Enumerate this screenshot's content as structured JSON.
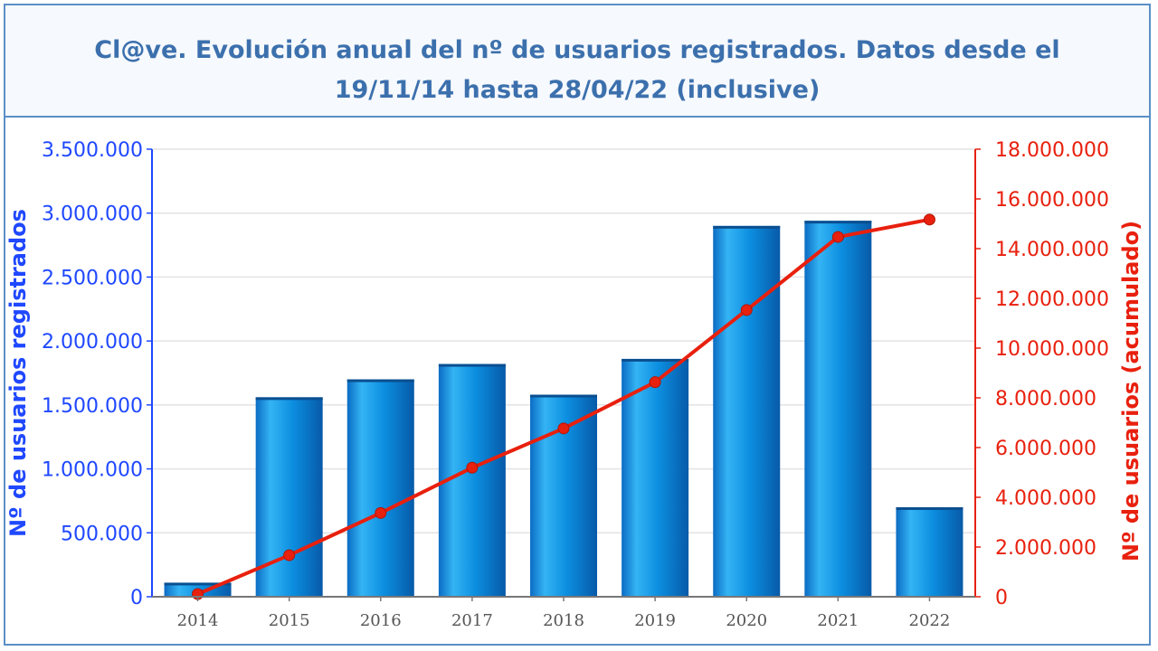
{
  "chart_data": {
    "type": "bar",
    "title": "Cl@ve. Evolución anual del nº de usuarios registrados. Datos desde el  19/11/14 hasta 28/04/22 (inclusive)",
    "categories": [
      "2014",
      "2015",
      "2016",
      "2017",
      "2018",
      "2019",
      "2020",
      "2021",
      "2022"
    ],
    "series": [
      {
        "name": "Nº de usuarios registrados",
        "type": "bar",
        "axis": "left",
        "color": "#0a86d8",
        "values": [
          110000,
          1560000,
          1700000,
          1820000,
          1580000,
          1860000,
          2900000,
          2940000,
          700000
        ]
      },
      {
        "name": "Nº de usuarios (acumulado)",
        "type": "line",
        "axis": "right",
        "color": "#e8200e",
        "values": [
          110000,
          1670000,
          3370000,
          5190000,
          6770000,
          8630000,
          11530000,
          14470000,
          15170000
        ]
      }
    ],
    "ylabel": "Nº de usuarios registrados",
    "ylabel_right": "Nº de usuarios (acumulado)",
    "ylim": [
      0,
      3500000
    ],
    "ylim_right": [
      0,
      18000000
    ],
    "yticks": [
      "0",
      "500.000",
      "1.000.000",
      "1.500.000",
      "2.000.000",
      "2.500.000",
      "3.000.000",
      "3.500.000"
    ],
    "yticks_right": [
      "0",
      "2.000.000",
      "4.000.000",
      "6.000.000",
      "8.000.000",
      "10.000.000",
      "12.000.000",
      "14.000.000",
      "16.000.000",
      "18.000.000"
    ],
    "grid": true,
    "colors": {
      "title": "#3c70ad",
      "left_axis": "#1f48ff",
      "right_axis": "#e8200e",
      "frame": "#5b8fc7"
    }
  }
}
